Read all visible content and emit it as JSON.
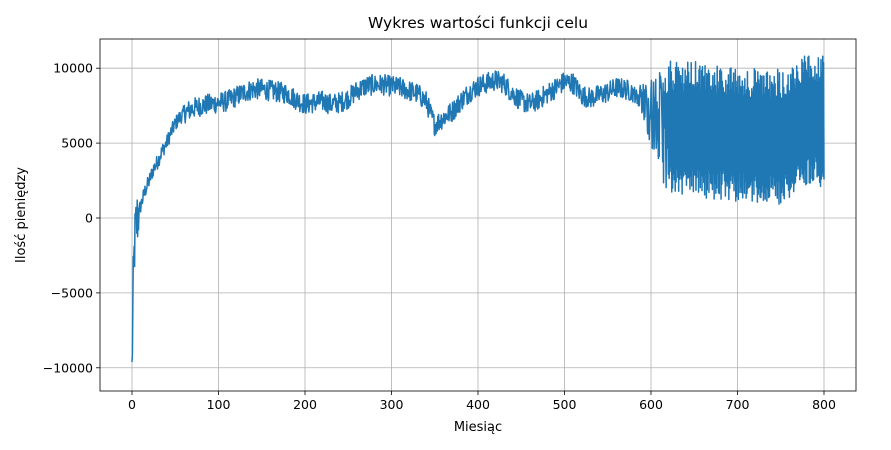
{
  "chart_data": {
    "type": "line",
    "title": "Wykres wartości funkcji celu",
    "xlabel": "Miesiąc",
    "ylabel": "Ilość pieniędzy",
    "xlim": [
      -37,
      837
    ],
    "ylim": [
      -11550,
      11950
    ],
    "xticks": [
      0,
      100,
      200,
      300,
      400,
      500,
      600,
      700,
      800
    ],
    "yticks": [
      -10000,
      -5000,
      0,
      5000,
      10000
    ],
    "grid": true,
    "legend": "none",
    "series": [
      {
        "color": "#1f77b4",
        "x": [
          0,
          1,
          2,
          3,
          4,
          5,
          7,
          10,
          15,
          20,
          25,
          30,
          35,
          40,
          45,
          50,
          55,
          60,
          70,
          80,
          90,
          100,
          110,
          120,
          130,
          140,
          150,
          160,
          170,
          180,
          190,
          200,
          210,
          220,
          230,
          240,
          250,
          260,
          270,
          280,
          290,
          300,
          310,
          320,
          330,
          340,
          350,
          360,
          370,
          380,
          390,
          400,
          410,
          420,
          430,
          440,
          450,
          460,
          470,
          480,
          490,
          500,
          510,
          520,
          530,
          540,
          550,
          560,
          570,
          580,
          590,
          600,
          610,
          620,
          630,
          640,
          650,
          660,
          670,
          680,
          690,
          700,
          710,
          720,
          730,
          740,
          750,
          760,
          770,
          780,
          790,
          800
        ],
        "y": [
          -10300,
          -6000,
          -3500,
          -1800,
          -1000,
          -500,
          300,
          800,
          1800,
          2500,
          3300,
          3800,
          4500,
          5000,
          5700,
          6300,
          6700,
          7000,
          7300,
          7500,
          7600,
          7700,
          7800,
          8100,
          8400,
          8600,
          8600,
          8500,
          8400,
          8300,
          7900,
          7600,
          7700,
          7800,
          7600,
          7700,
          8000,
          8500,
          8800,
          8900,
          8900,
          8800,
          8700,
          8500,
          8300,
          7800,
          6200,
          6700,
          7100,
          7800,
          8400,
          8800,
          9000,
          9200,
          9000,
          8300,
          7800,
          7600,
          7900,
          8300,
          8700,
          9100,
          9000,
          8200,
          8000,
          8200,
          8400,
          8700,
          8600,
          8400,
          8000,
          7000,
          6400,
          6000,
          5900,
          5900,
          6000,
          5800,
          5700,
          5700,
          5600,
          5500,
          5600,
          5500,
          5300,
          5500,
          5400,
          5800,
          6200,
          6500,
          6600,
          6600
        ]
      }
    ],
    "noise_regions": [
      {
        "from": 0,
        "to": 60,
        "amplitude": 500
      },
      {
        "from": 60,
        "to": 580,
        "amplitude": 700
      },
      {
        "from": 580,
        "to": 800,
        "amplitude": 4500
      }
    ]
  }
}
